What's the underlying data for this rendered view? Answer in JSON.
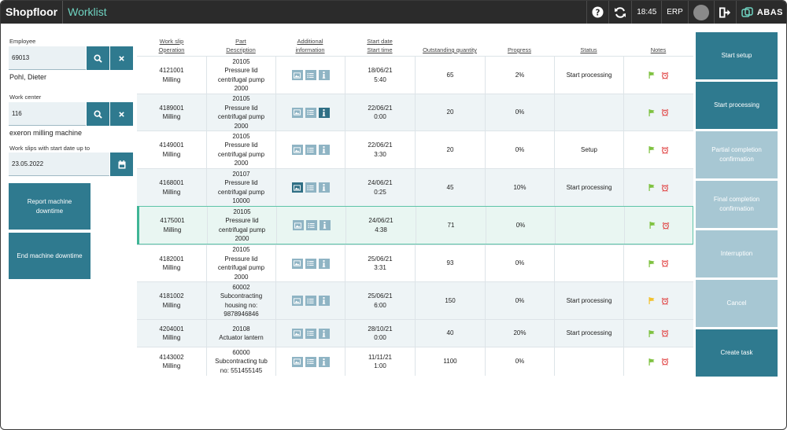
{
  "app": {
    "brand": "Shopfloor",
    "module": "Worklist"
  },
  "topbar": {
    "time": "18:45",
    "erp": "ERP",
    "logo": "ABAS"
  },
  "left": {
    "employee_label": "Employee",
    "employee_value": "69013",
    "employee_name": "Pohl, Dieter",
    "workcenter_label": "Work center",
    "workcenter_value": "116",
    "workcenter_name": "exeron milling machine",
    "date_label": "Work slips with start date up to",
    "date_value": "23.05.2022",
    "report_downtime": "Report machine downtime",
    "end_downtime": "End machine downtime"
  },
  "table": {
    "headers": {
      "workslip": "Work slip",
      "operation": "Operation",
      "part": "Part",
      "description": "Description",
      "additional": "Additional",
      "information": "information",
      "start_date": "Start date",
      "start_time": "Start time",
      "outstanding": "Outstanding quantity",
      "progress": "Progress",
      "status": "Status",
      "notes": "Notes"
    },
    "rows": [
      {
        "slip": "4121001",
        "op": "Milling",
        "part": "20105",
        "d1": "Pressure lid",
        "d2": "centrifugal pump",
        "d3": "2000",
        "date": "18/06/21",
        "time": "5:40",
        "qty": "65",
        "progress": "2%",
        "status": "Start processing",
        "flag": "green"
      },
      {
        "slip": "4189001",
        "op": "Milling",
        "part": "20105",
        "d1": "Pressure lid",
        "d2": "centrifugal pump",
        "d3": "2000",
        "date": "22/06/21",
        "time": "0:00",
        "qty": "20",
        "progress": "0%",
        "status": "",
        "flag": "green"
      },
      {
        "slip": "4149001",
        "op": "Milling",
        "part": "20105",
        "d1": "Pressure lid",
        "d2": "centrifugal pump",
        "d3": "2000",
        "date": "22/06/21",
        "time": "3:30",
        "qty": "20",
        "progress": "0%",
        "status": "Setup",
        "flag": "green"
      },
      {
        "slip": "4168001",
        "op": "Milling",
        "part": "20107",
        "d1": "Pressure lid",
        "d2": "centrifugal pump",
        "d3": "10000",
        "date": "24/06/21",
        "time": "0:25",
        "qty": "45",
        "progress": "10%",
        "status": "Start processing",
        "flag": "green"
      },
      {
        "slip": "4175001",
        "op": "Milling",
        "part": "20105",
        "d1": "Pressure lid",
        "d2": "centrifugal pump",
        "d3": "2000",
        "date": "24/06/21",
        "time": "4:38",
        "qty": "71",
        "progress": "0%",
        "status": "",
        "flag": "green"
      },
      {
        "slip": "4182001",
        "op": "Milling",
        "part": "20105",
        "d1": "Pressure lid",
        "d2": "centrifugal pump",
        "d3": "2000",
        "date": "25/06/21",
        "time": "3:31",
        "qty": "93",
        "progress": "0%",
        "status": "",
        "flag": "green"
      },
      {
        "slip": "4181002",
        "op": "Milling",
        "part": "60002",
        "d1": "Subcontracting",
        "d2": "housing no:",
        "d3": "9878946846",
        "date": "25/06/21",
        "time": "6:00",
        "qty": "150",
        "progress": "0%",
        "status": "Start processing",
        "flag": "yellow"
      },
      {
        "slip": "4204001",
        "op": "Milling",
        "part": "20108",
        "d1": "Actuator lantern",
        "d2": "",
        "d3": "",
        "date": "28/10/21",
        "time": "0:00",
        "qty": "40",
        "progress": "20%",
        "status": "Start processing",
        "flag": "green"
      },
      {
        "slip": "4143002",
        "op": "Milling",
        "part": "60000",
        "d1": "Subcontracting tub",
        "d2": "no: 551455145",
        "d3": "",
        "date": "11/11/21",
        "time": "1:00",
        "qty": "1100",
        "progress": "0%",
        "status": "",
        "flag": "green"
      }
    ]
  },
  "actions": {
    "start_setup": "Start setup",
    "start_processing": "Start processing",
    "partial": "Partial completion confirmation",
    "final": "Final completion confirmation",
    "interruption": "Interruption",
    "cancel": "Cancel",
    "create_task": "Create task"
  },
  "colors": {
    "accent": "#2f7a8f",
    "disabled": "#a7c7d3",
    "topbar": "#2b2b2b",
    "module": "#6fd3c1",
    "flag_green": "#7fc241",
    "flag_yellow": "#f2c230",
    "alarm": "#e04040"
  }
}
